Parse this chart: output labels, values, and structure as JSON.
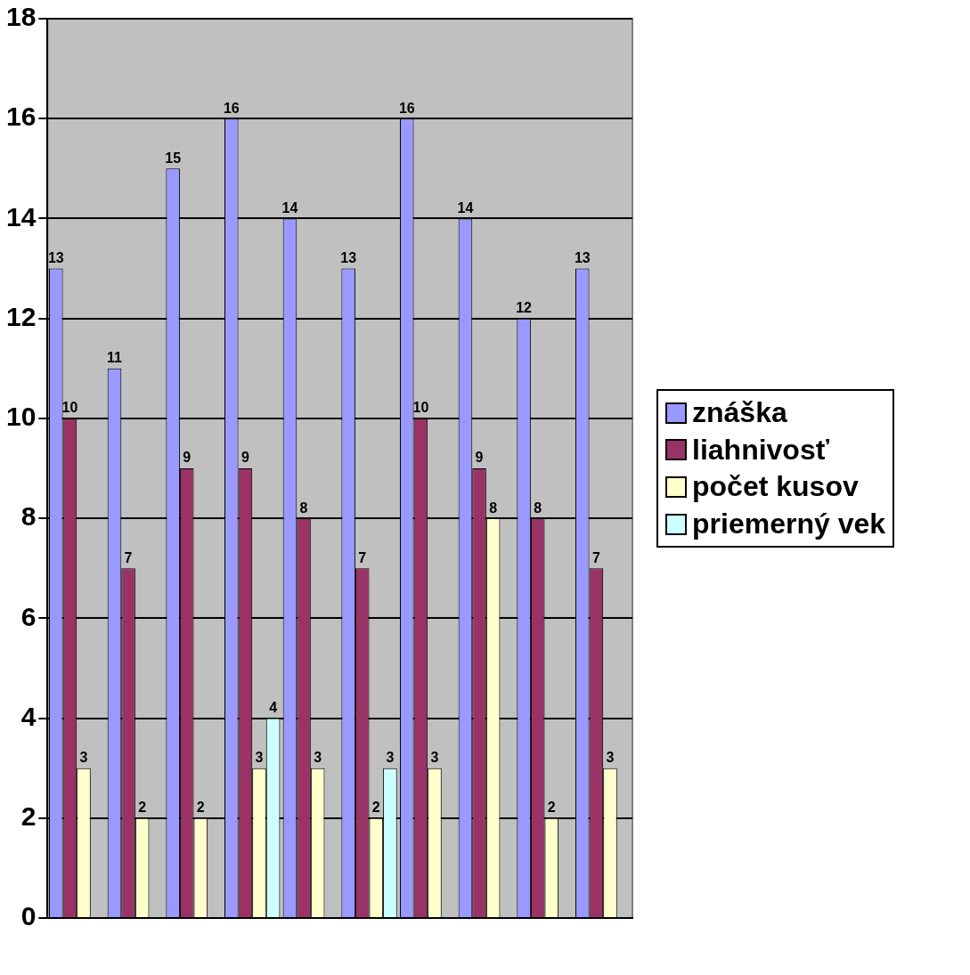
{
  "chart_data": {
    "type": "bar",
    "categories": [
      null,
      null,
      null,
      null,
      null,
      null,
      null,
      null,
      null,
      null
    ],
    "series": [
      {
        "name": "znáška",
        "color": "#9999ff",
        "values": [
          13,
          11,
          15,
          16,
          14,
          13,
          16,
          14,
          12,
          13
        ]
      },
      {
        "name": "liahnivosť",
        "color": "#993366",
        "values": [
          10,
          7,
          9,
          9,
          8,
          7,
          10,
          9,
          8,
          7
        ]
      },
      {
        "name": "počet kusov",
        "color": "#ffffcc",
        "values": [
          3,
          2,
          2,
          3,
          3,
          2,
          3,
          8,
          2,
          3
        ]
      },
      {
        "name": "priemerný vek",
        "color": "#ccffff",
        "values": [
          null,
          null,
          null,
          4,
          null,
          3,
          null,
          null,
          null,
          null
        ]
      }
    ],
    "ylim": [
      0,
      18
    ],
    "yticks": [
      0,
      2,
      4,
      6,
      8,
      10,
      12,
      14,
      16,
      18
    ],
    "grid": "y",
    "legend": "right",
    "tick_labels": "y",
    "data_labels": true
  }
}
